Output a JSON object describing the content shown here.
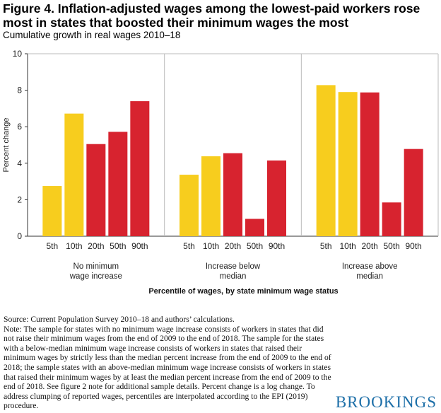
{
  "header": {
    "title": "Figure 4. Inflation-adjusted wages among the lowest-paid workers rose most in states that boosted their minimum wages the most",
    "subtitle": "Cumulative growth in real wages 2010–18"
  },
  "chart_data": {
    "type": "bar",
    "title": "Figure 4. Inflation-adjusted wages among the lowest-paid workers rose most in states that boosted their minimum wages the most",
    "subtitle": "Cumulative growth in real wages 2010–18",
    "ylabel": "Percent change",
    "xlabel": "Percentile of wages, by state minimum wage status",
    "ylim": [
      0,
      10
    ],
    "yticks": [
      0,
      2,
      4,
      6,
      8,
      10
    ],
    "grid": false,
    "categories": [
      "5th",
      "10th",
      "20th",
      "50th",
      "90th"
    ],
    "groups": [
      {
        "name": "No minimum\nwage increase",
        "values": [
          2.75,
          6.72,
          5.05,
          5.72,
          7.4
        ]
      },
      {
        "name": "Increase below\nmedian",
        "values": [
          3.37,
          4.38,
          4.55,
          0.95,
          4.15
        ]
      },
      {
        "name": "Increase above\nmedian",
        "values": [
          8.28,
          7.9,
          7.88,
          1.85,
          4.78
        ]
      }
    ],
    "bar_colors": [
      "#f7cd1e",
      "#f7cd1e",
      "#d7232f",
      "#d7232f",
      "#d7232f"
    ]
  },
  "notes": {
    "source": "Source: Current Population Survey 2010–18 and authors’ calculations.",
    "note": "Note: The sample for states with no minimum wage increase consists of workers in states that did not raise their minimum wages from the end of 2009 to the end of 2018. The sample for the states with a below-median minimum wage increase consists of workers in states that raised their minimum wages by strictly less than the median percent increase from the end of 2009 to the end of 2018; the sample states with an above-median minimum wage increase consists of workers in states that raised their minimum wages by at least the median percent increase from the end of 2009 to the end of 2018. See figure 2 note for additional sample details. Percent change is a log change. To address clumping of reported wages, percentiles are interpolated according to the EPI (2019) procedure."
  },
  "logo": {
    "text": "BROOKINGS",
    "color": "#1d6fa8"
  }
}
